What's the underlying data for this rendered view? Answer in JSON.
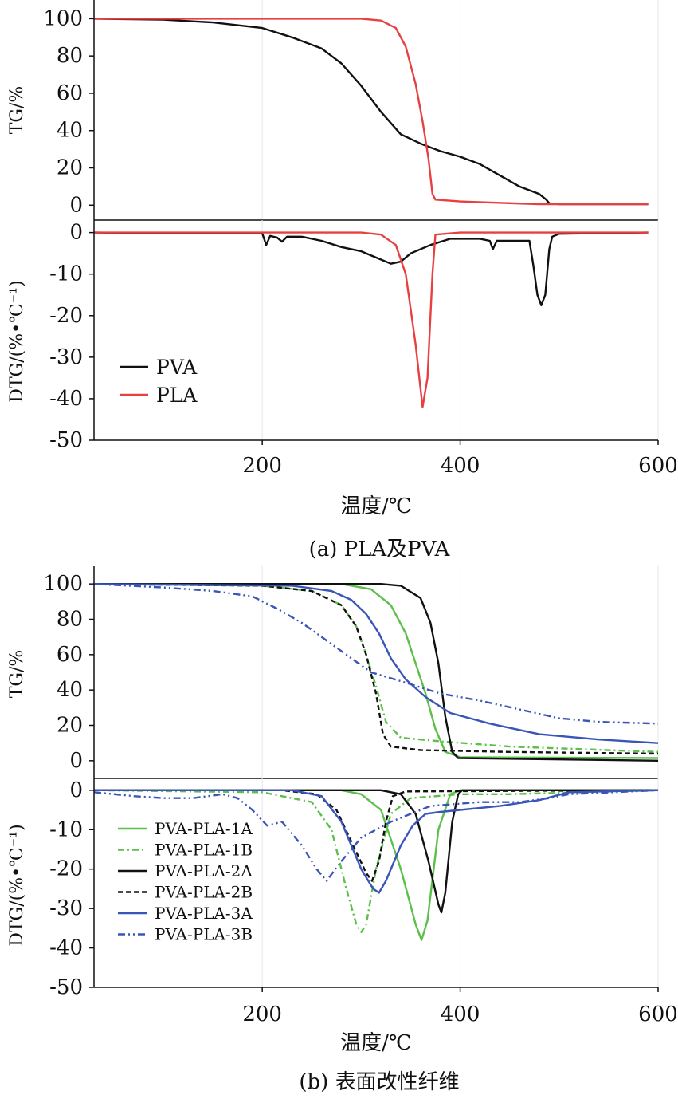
{
  "xlabel": "温度/℃",
  "chart_data": [
    {
      "id": "a",
      "type": "line",
      "caption": "(a) PLA及PVA",
      "x_ticks": [
        200,
        400,
        600
      ],
      "xlim": [
        30,
        600
      ],
      "tg": {
        "ylabel": "TG/%",
        "ylim": [
          -8,
          110
        ],
        "ticks": [
          0,
          20,
          40,
          60,
          80,
          100
        ]
      },
      "dtg": {
        "ylabel": "DTG/(%•℃⁻¹)",
        "ylim": [
          -50,
          3
        ],
        "ticks": [
          0,
          -10,
          -20,
          -30,
          -40,
          -50
        ]
      },
      "legend": [
        "PVA",
        "PLA"
      ],
      "series": [
        {
          "name": "PVA",
          "color": "#111111",
          "dash": "solid",
          "tg": [
            [
              30,
              100
            ],
            [
              100,
              99.5
            ],
            [
              150,
              98
            ],
            [
              200,
              95
            ],
            [
              230,
              90
            ],
            [
              260,
              84
            ],
            [
              280,
              76
            ],
            [
              300,
              64
            ],
            [
              320,
              50
            ],
            [
              340,
              38
            ],
            [
              360,
              33
            ],
            [
              380,
              29
            ],
            [
              400,
              26
            ],
            [
              420,
              22
            ],
            [
              440,
              16
            ],
            [
              460,
              10
            ],
            [
              480,
              6
            ],
            [
              487,
              3
            ],
            [
              490,
              1
            ],
            [
              500,
              0.5
            ],
            [
              590,
              0.5
            ]
          ],
          "dtg": [
            [
              30,
              0
            ],
            [
              200,
              -0.2
            ],
            [
              204,
              -3
            ],
            [
              208,
              -0.8
            ],
            [
              215,
              -1.2
            ],
            [
              220,
              -2.2
            ],
            [
              225,
              -1
            ],
            [
              240,
              -1
            ],
            [
              260,
              -2
            ],
            [
              280,
              -3.5
            ],
            [
              300,
              -4.5
            ],
            [
              320,
              -6.5
            ],
            [
              330,
              -7.5
            ],
            [
              340,
              -7
            ],
            [
              350,
              -5
            ],
            [
              370,
              -3
            ],
            [
              390,
              -1.5
            ],
            [
              420,
              -1.5
            ],
            [
              430,
              -2
            ],
            [
              433,
              -4
            ],
            [
              437,
              -2
            ],
            [
              450,
              -2
            ],
            [
              470,
              -2
            ],
            [
              474,
              -8
            ],
            [
              478,
              -15
            ],
            [
              482,
              -17.5
            ],
            [
              486,
              -15
            ],
            [
              490,
              -4
            ],
            [
              493,
              -1
            ],
            [
              500,
              -0.3
            ],
            [
              590,
              0
            ]
          ]
        },
        {
          "name": "PLA",
          "color": "#e84040",
          "dash": "solid",
          "tg": [
            [
              30,
              100
            ],
            [
              300,
              100
            ],
            [
              320,
              99
            ],
            [
              335,
              95
            ],
            [
              345,
              85
            ],
            [
              355,
              65
            ],
            [
              362,
              45
            ],
            [
              368,
              25
            ],
            [
              372,
              6
            ],
            [
              375,
              3
            ],
            [
              400,
              2
            ],
            [
              480,
              0.5
            ],
            [
              590,
              0.5
            ]
          ],
          "dtg": [
            [
              30,
              0
            ],
            [
              300,
              0
            ],
            [
              320,
              -0.5
            ],
            [
              335,
              -3
            ],
            [
              345,
              -10
            ],
            [
              355,
              -27
            ],
            [
              362,
              -42
            ],
            [
              367,
              -35
            ],
            [
              372,
              -10
            ],
            [
              375,
              -0.5
            ],
            [
              400,
              0
            ],
            [
              590,
              0
            ]
          ]
        }
      ]
    },
    {
      "id": "b",
      "type": "line",
      "caption": "(b) 表面改性纤维",
      "x_ticks": [
        200,
        400,
        600
      ],
      "xlim": [
        30,
        600
      ],
      "tg": {
        "ylabel": "TG/%",
        "ylim": [
          -10,
          110
        ],
        "ticks": [
          0,
          20,
          40,
          60,
          80,
          100
        ]
      },
      "dtg": {
        "ylabel": "DTG/(%•℃⁻¹)",
        "ylim": [
          -50,
          3
        ],
        "ticks": [
          0,
          -10,
          -20,
          -30,
          -40,
          -50
        ]
      },
      "legend": [
        "PVA-PLA-1A",
        "PVA-PLA-1B",
        "PVA-PLA-2A",
        "PVA-PLA-2B",
        "PVA-PLA-3A",
        "PVA-PLA-3B"
      ],
      "series": [
        {
          "name": "PVA-PLA-1A",
          "color": "#5bbf4a",
          "dash": "solid",
          "tg": [
            [
              30,
              100
            ],
            [
              280,
              100
            ],
            [
              310,
              97
            ],
            [
              330,
              88
            ],
            [
              345,
              72
            ],
            [
              355,
              55
            ],
            [
              365,
              38
            ],
            [
              375,
              18
            ],
            [
              385,
              5
            ],
            [
              400,
              2
            ],
            [
              600,
              1.5
            ]
          ],
          "dtg": [
            [
              30,
              0
            ],
            [
              280,
              0
            ],
            [
              300,
              -1
            ],
            [
              320,
              -5
            ],
            [
              340,
              -20
            ],
            [
              355,
              -34
            ],
            [
              361,
              -38
            ],
            [
              367,
              -33
            ],
            [
              378,
              -10
            ],
            [
              390,
              -1
            ],
            [
              400,
              0
            ],
            [
              600,
              0
            ]
          ]
        },
        {
          "name": "PVA-PLA-1B",
          "color": "#5bbf4a",
          "dash": "8 4 2 4",
          "tg": [
            [
              30,
              100
            ],
            [
              200,
              99
            ],
            [
              250,
              96
            ],
            [
              280,
              88
            ],
            [
              295,
              76
            ],
            [
              305,
              60
            ],
            [
              315,
              42
            ],
            [
              325,
              22
            ],
            [
              340,
              13
            ],
            [
              380,
              11
            ],
            [
              450,
              8
            ],
            [
              600,
              5
            ]
          ],
          "dtg": [
            [
              30,
              0
            ],
            [
              200,
              -0.5
            ],
            [
              250,
              -3
            ],
            [
              270,
              -10
            ],
            [
              285,
              -25
            ],
            [
              295,
              -34
            ],
            [
              300,
              -36
            ],
            [
              305,
              -34
            ],
            [
              315,
              -20
            ],
            [
              330,
              -6
            ],
            [
              350,
              -2
            ],
            [
              400,
              -1
            ],
            [
              450,
              -1
            ],
            [
              600,
              0
            ]
          ]
        },
        {
          "name": "PVA-PLA-2A",
          "color": "#111111",
          "dash": "solid",
          "tg": [
            [
              30,
              100
            ],
            [
              320,
              100
            ],
            [
              340,
              99
            ],
            [
              360,
              92
            ],
            [
              370,
              78
            ],
            [
              378,
              55
            ],
            [
              385,
              25
            ],
            [
              392,
              5
            ],
            [
              398,
              1.5
            ],
            [
              600,
              0
            ]
          ],
          "dtg": [
            [
              30,
              0
            ],
            [
              320,
              0
            ],
            [
              340,
              -1
            ],
            [
              355,
              -6
            ],
            [
              368,
              -18
            ],
            [
              378,
              -29
            ],
            [
              381,
              -31
            ],
            [
              385,
              -26
            ],
            [
              392,
              -8
            ],
            [
              398,
              -1
            ],
            [
              402,
              0
            ],
            [
              600,
              0
            ]
          ]
        },
        {
          "name": "PVA-PLA-2B",
          "color": "#111111",
          "dash": "6 4",
          "tg": [
            [
              30,
              100
            ],
            [
              200,
              99
            ],
            [
              250,
              96
            ],
            [
              280,
              88
            ],
            [
              295,
              76
            ],
            [
              305,
              60
            ],
            [
              315,
              38
            ],
            [
              322,
              15
            ],
            [
              330,
              8
            ],
            [
              360,
              6
            ],
            [
              450,
              5
            ],
            [
              600,
              4
            ]
          ],
          "dtg": [
            [
              30,
              0
            ],
            [
              220,
              0
            ],
            [
              255,
              -1
            ],
            [
              275,
              -5
            ],
            [
              290,
              -13
            ],
            [
              305,
              -21
            ],
            [
              311,
              -23
            ],
            [
              318,
              -18
            ],
            [
              325,
              -8
            ],
            [
              332,
              -1.5
            ],
            [
              345,
              -0.3
            ],
            [
              600,
              0
            ]
          ]
        },
        {
          "name": "PVA-PLA-3A",
          "color": "#3a55b8",
          "dash": "solid",
          "tg": [
            [
              30,
              100
            ],
            [
              230,
              99
            ],
            [
              270,
              96
            ],
            [
              290,
              91
            ],
            [
              305,
              83
            ],
            [
              318,
              72
            ],
            [
              330,
              58
            ],
            [
              345,
              46
            ],
            [
              365,
              36
            ],
            [
              390,
              27
            ],
            [
              430,
              21
            ],
            [
              480,
              15
            ],
            [
              540,
              12
            ],
            [
              600,
              10
            ]
          ],
          "dtg": [
            [
              30,
              0
            ],
            [
              230,
              0
            ],
            [
              260,
              -1.5
            ],
            [
              280,
              -8
            ],
            [
              300,
              -20
            ],
            [
              312,
              -25
            ],
            [
              318,
              -26
            ],
            [
              325,
              -23
            ],
            [
              340,
              -14
            ],
            [
              352,
              -9
            ],
            [
              365,
              -6
            ],
            [
              380,
              -5.5
            ],
            [
              400,
              -5
            ],
            [
              440,
              -4
            ],
            [
              480,
              -2.5
            ],
            [
              510,
              -0.5
            ],
            [
              600,
              0
            ]
          ]
        },
        {
          "name": "PVA-PLA-3B",
          "color": "#3a55b8",
          "dash": "9 4 2 4 2 4",
          "tg": [
            [
              30,
              100
            ],
            [
              100,
              98
            ],
            [
              150,
              96
            ],
            [
              190,
              93
            ],
            [
              215,
              86
            ],
            [
              240,
              78
            ],
            [
              265,
              68
            ],
            [
              290,
              58
            ],
            [
              310,
              50
            ],
            [
              340,
              45
            ],
            [
              380,
              38
            ],
            [
              420,
              34
            ],
            [
              460,
              29
            ],
            [
              500,
              24
            ],
            [
              540,
              22
            ],
            [
              600,
              21
            ]
          ],
          "dtg": [
            [
              30,
              -0.5
            ],
            [
              70,
              -1.5
            ],
            [
              100,
              -2
            ],
            [
              130,
              -2
            ],
            [
              160,
              -1
            ],
            [
              175,
              -2
            ],
            [
              190,
              -5
            ],
            [
              205,
              -9
            ],
            [
              220,
              -8
            ],
            [
              240,
              -14
            ],
            [
              255,
              -20
            ],
            [
              265,
              -23
            ],
            [
              280,
              -18
            ],
            [
              300,
              -12
            ],
            [
              330,
              -8
            ],
            [
              370,
              -4
            ],
            [
              420,
              -3
            ],
            [
              460,
              -3
            ],
            [
              490,
              -2
            ],
            [
              510,
              -1
            ],
            [
              600,
              0
            ]
          ]
        }
      ]
    }
  ]
}
